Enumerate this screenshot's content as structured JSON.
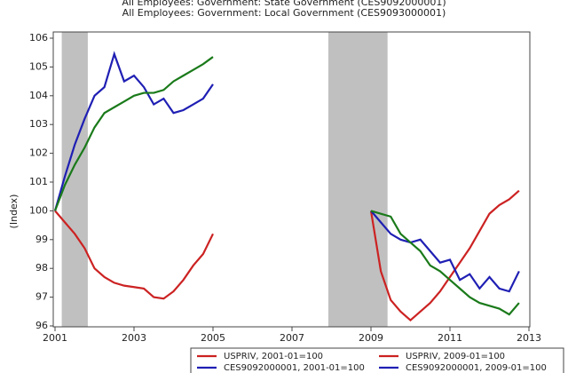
{
  "chart_data": {
    "type": "line",
    "titles": [
      "All Employees: Government: State Government (CES9092000001)",
      "All Employees: Government: Local Government (CES9093000001)"
    ],
    "y_label": "(Index)",
    "xlim": [
      2001,
      2013
    ],
    "xticks": [
      2001,
      2003,
      2005,
      2007,
      2009,
      2011,
      2013
    ],
    "ylim": [
      96,
      106
    ],
    "yticks": [
      96,
      97,
      98,
      99,
      100,
      101,
      102,
      103,
      104,
      105,
      106
    ],
    "shaded": [
      [
        2001.17,
        2001.83
      ],
      [
        2007.92,
        2009.42
      ]
    ],
    "shade_color": "#c0c0c0",
    "series": [
      {
        "name": "USPRIV, 2001-01=100",
        "color": "#cc2222",
        "x": [
          2001,
          2001.25,
          2001.5,
          2001.75,
          2002,
          2002.25,
          2002.5,
          2002.75,
          2003,
          2003.25,
          2003.5,
          2003.75,
          2004,
          2004.25,
          2004.5,
          2004.75,
          2005
        ],
        "values": [
          100,
          99.6,
          99.2,
          98.7,
          98.0,
          97.7,
          97.5,
          97.4,
          97.35,
          97.3,
          97.0,
          96.95,
          97.2,
          97.6,
          98.1,
          98.5,
          99.2
        ]
      },
      {
        "name": "CES9092000001, 2001-01=100",
        "color": "#1f1fb4",
        "x": [
          2001,
          2001.25,
          2001.5,
          2001.75,
          2002,
          2002.25,
          2002.5,
          2002.75,
          2003,
          2003.25,
          2003.5,
          2003.75,
          2004,
          2004.25,
          2004.5,
          2004.75,
          2005
        ],
        "values": [
          100,
          101.2,
          102.3,
          103.2,
          104.0,
          104.3,
          105.45,
          104.5,
          104.7,
          104.3,
          103.7,
          103.9,
          103.4,
          103.5,
          103.7,
          103.9,
          104.4
        ]
      },
      {
        "color": "#1a7a1a",
        "x": [
          2001,
          2001.25,
          2001.5,
          2001.75,
          2002,
          2002.25,
          2002.5,
          2002.75,
          2003,
          2003.25,
          2003.5,
          2003.75,
          2004,
          2004.25,
          2004.5,
          2004.75,
          2005
        ],
        "values": [
          100,
          100.9,
          101.6,
          102.2,
          102.9,
          103.4,
          103.6,
          103.8,
          104.0,
          104.1,
          104.1,
          104.2,
          104.5,
          104.7,
          104.9,
          105.1,
          105.35
        ]
      },
      {
        "name": "USPRIV, 2009-01=100",
        "color": "#cc2222",
        "x": [
          2009,
          2009.25,
          2009.5,
          2009.75,
          2010,
          2010.25,
          2010.5,
          2010.75,
          2011,
          2011.25,
          2011.5,
          2011.75,
          2012,
          2012.25,
          2012.5,
          2012.75
        ],
        "values": [
          100,
          97.9,
          96.9,
          96.5,
          96.2,
          96.5,
          96.8,
          97.2,
          97.7,
          98.2,
          98.7,
          99.3,
          99.9,
          100.2,
          100.4,
          100.7
        ]
      },
      {
        "name": "CES9092000001, 2009-01=100",
        "color": "#1f1fb4",
        "x": [
          2009,
          2009.25,
          2009.5,
          2009.75,
          2010,
          2010.25,
          2010.5,
          2010.75,
          2011,
          2011.25,
          2011.5,
          2011.75,
          2012,
          2012.25,
          2012.5,
          2012.75
        ],
        "values": [
          100,
          99.6,
          99.2,
          99.0,
          98.9,
          99.0,
          98.6,
          98.2,
          98.3,
          97.6,
          97.8,
          97.3,
          97.7,
          97.3,
          97.2,
          97.9
        ]
      },
      {
        "color": "#1a7a1a",
        "x": [
          2009,
          2009.25,
          2009.5,
          2009.75,
          2010,
          2010.25,
          2010.5,
          2010.75,
          2011,
          2011.25,
          2011.5,
          2011.75,
          2012,
          2012.25,
          2012.5,
          2012.75
        ],
        "values": [
          100,
          99.9,
          99.8,
          99.2,
          98.9,
          98.6,
          98.1,
          97.9,
          97.6,
          97.3,
          97.0,
          96.8,
          96.7,
          96.6,
          96.4,
          96.8
        ]
      }
    ]
  }
}
